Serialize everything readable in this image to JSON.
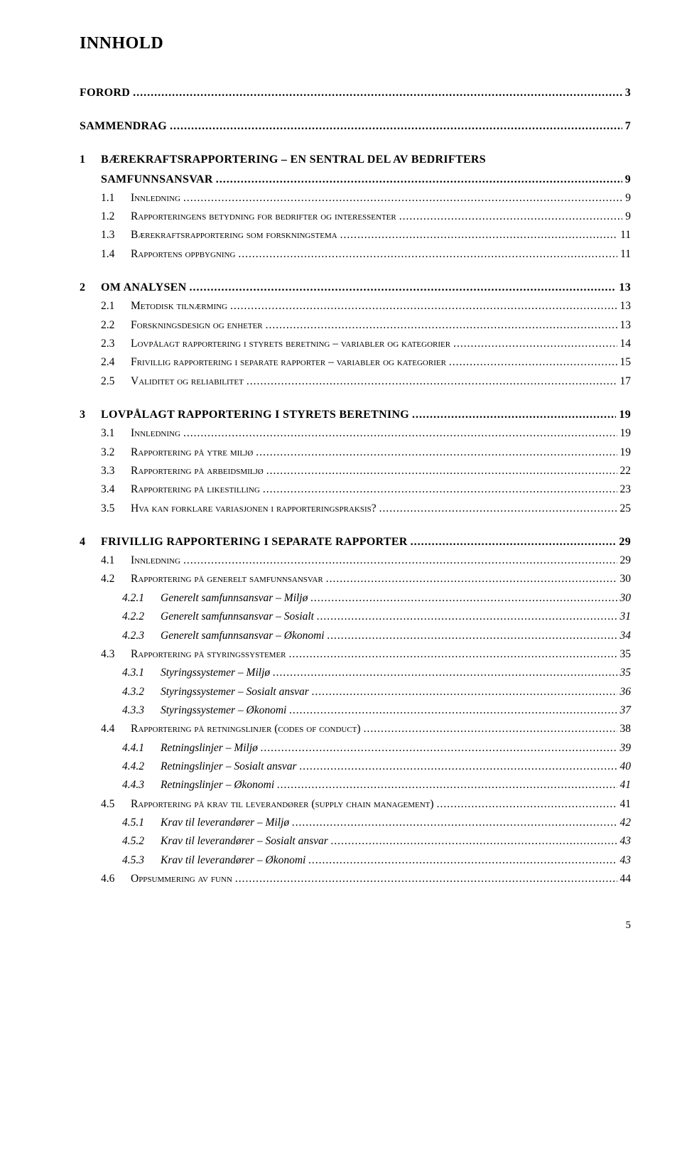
{
  "title": "INNHOLD",
  "page_number": "5",
  "entries": [
    {
      "level": "top",
      "num": "",
      "label": "FORORD",
      "page": "3"
    },
    {
      "level": "top",
      "num": "",
      "label": "SAMMENDRAG",
      "page": "7"
    },
    {
      "level": "top",
      "num": "1",
      "label": "BÆREKRAFTSRAPPORTERING – EN SENTRAL DEL AV BEDRIFTERS SAMFUNNSANSVAR",
      "page": "9",
      "wrap": true
    },
    {
      "level": "l1",
      "num": "1.1",
      "label": "Innledning",
      "page": "9"
    },
    {
      "level": "l1",
      "num": "1.2",
      "label": "Rapporteringens betydning for bedrifter og interessenter",
      "page": "9"
    },
    {
      "level": "l1",
      "num": "1.3",
      "label": "Bærekraftsrapportering som forskningstema",
      "page": "11"
    },
    {
      "level": "l1",
      "num": "1.4",
      "label": "Rapportens oppbygning",
      "page": "11"
    },
    {
      "level": "top",
      "num": "2",
      "label": "OM ANALYSEN",
      "page": "13"
    },
    {
      "level": "l1",
      "num": "2.1",
      "label": "Metodisk tilnærming",
      "page": "13"
    },
    {
      "level": "l1",
      "num": "2.2",
      "label": "Forskningsdesign og enheter",
      "page": "13"
    },
    {
      "level": "l1",
      "num": "2.3",
      "label": "Lovpålagt rapportering i styrets beretning – variabler og kategorier",
      "page": "14"
    },
    {
      "level": "l1",
      "num": "2.4",
      "label": "Frivillig rapportering i separate rapporter – variabler og kategorier",
      "page": "15"
    },
    {
      "level": "l1",
      "num": "2.5",
      "label": "Validitet og reliabilitet",
      "page": "17"
    },
    {
      "level": "top",
      "num": "3",
      "label": "LOVPÅLAGT RAPPORTERING I STYRETS BERETNING",
      "page": "19"
    },
    {
      "level": "l1",
      "num": "3.1",
      "label": "Innledning",
      "page": "19"
    },
    {
      "level": "l1",
      "num": "3.2",
      "label": "Rapportering på ytre miljø",
      "page": "19"
    },
    {
      "level": "l1",
      "num": "3.3",
      "label": "Rapportering på arbeidsmiljø",
      "page": "22"
    },
    {
      "level": "l1",
      "num": "3.4",
      "label": "Rapportering på likestilling",
      "page": "23"
    },
    {
      "level": "l1",
      "num": "3.5",
      "label": "Hva kan forklare variasjonen i rapporteringspraksis?",
      "page": "25"
    },
    {
      "level": "top",
      "num": "4",
      "label": "FRIVILLIG RAPPORTERING I SEPARATE RAPPORTER",
      "page": "29"
    },
    {
      "level": "l1",
      "num": "4.1",
      "label": "Innledning",
      "page": "29"
    },
    {
      "level": "l1",
      "num": "4.2",
      "label": "Rapportering på generelt samfunnsansvar",
      "page": "30"
    },
    {
      "level": "l2",
      "num": "4.2.1",
      "label": "Generelt samfunnsansvar – Miljø",
      "page": "30"
    },
    {
      "level": "l2",
      "num": "4.2.2",
      "label": "Generelt samfunnsansvar – Sosialt",
      "page": "31"
    },
    {
      "level": "l2",
      "num": "4.2.3",
      "label": "Generelt samfunnsansvar – Økonomi",
      "page": "34"
    },
    {
      "level": "l1",
      "num": "4.3",
      "label": "Rapportering på styringssystemer",
      "page": "35"
    },
    {
      "level": "l2",
      "num": "4.3.1",
      "label": "Styringssystemer – Miljø",
      "page": "35"
    },
    {
      "level": "l2",
      "num": "4.3.2",
      "label": "Styringssystemer – Sosialt ansvar",
      "page": "36"
    },
    {
      "level": "l2",
      "num": "4.3.3",
      "label": "Styringssystemer – Økonomi",
      "page": "37"
    },
    {
      "level": "l1",
      "num": "4.4",
      "label": "Rapportering på retningslinjer (codes of conduct)",
      "page": "38"
    },
    {
      "level": "l2",
      "num": "4.4.1",
      "label": "Retningslinjer – Miljø",
      "page": "39"
    },
    {
      "level": "l2",
      "num": "4.4.2",
      "label": "Retningslinjer – Sosialt ansvar",
      "page": "40"
    },
    {
      "level": "l2",
      "num": "4.4.3",
      "label": "Retningslinjer – Økonomi",
      "page": "41"
    },
    {
      "level": "l1",
      "num": "4.5",
      "label": "Rapportering på krav til leverandører (supply chain management)",
      "page": "41"
    },
    {
      "level": "l2",
      "num": "4.5.1",
      "label": "Krav til leverandører – Miljø",
      "page": "42"
    },
    {
      "level": "l2",
      "num": "4.5.2",
      "label": "Krav til leverandører – Sosialt ansvar",
      "page": "43"
    },
    {
      "level": "l2",
      "num": "4.5.3",
      "label": "Krav til leverandører – Økonomi",
      "page": "43"
    },
    {
      "level": "l1",
      "num": "4.6",
      "label": "Oppsummering av funn",
      "page": "44"
    }
  ]
}
